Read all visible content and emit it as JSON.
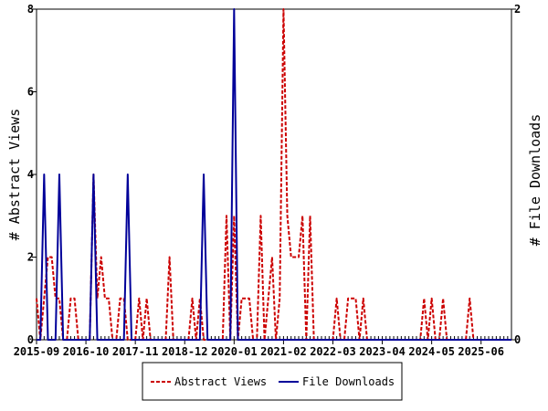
{
  "chart_data": {
    "type": "line",
    "title": "",
    "ylabel_left": "# Abstract Views",
    "ylabel_right": "# File Downloads",
    "x_tick_labels": [
      "2015-09",
      "2016-10",
      "2017-11",
      "2018-12",
      "2020-01",
      "2021-02",
      "2022-03",
      "2023-04",
      "2024-05",
      "2025-06"
    ],
    "x_range_months": [
      0,
      125
    ],
    "y_left_range": [
      0,
      8
    ],
    "y_left_ticks": [
      0,
      2,
      4,
      6,
      8
    ],
    "y_right_range": [
      0,
      2
    ],
    "y_right_ticks": [
      0,
      2
    ],
    "grid": false,
    "legend_placement": "bottom-center",
    "series": [
      {
        "name": "Abstract Views",
        "axis": "left",
        "color": "#cc0000",
        "style": "dashed",
        "points": [
          [
            0,
            1
          ],
          [
            1,
            0
          ],
          [
            2,
            1
          ],
          [
            3,
            2
          ],
          [
            4,
            2
          ],
          [
            5,
            1
          ],
          [
            6,
            1
          ],
          [
            7,
            0
          ],
          [
            8,
            0
          ],
          [
            9,
            1
          ],
          [
            10,
            1
          ],
          [
            11,
            0
          ],
          [
            12,
            0
          ],
          [
            13,
            0
          ],
          [
            14,
            0
          ],
          [
            15,
            4
          ],
          [
            16,
            1
          ],
          [
            17,
            2
          ],
          [
            18,
            1
          ],
          [
            19,
            1
          ],
          [
            20,
            0
          ],
          [
            21,
            0
          ],
          [
            22,
            1
          ],
          [
            23,
            1
          ],
          [
            24,
            0
          ],
          [
            25,
            0
          ],
          [
            26,
            0
          ],
          [
            27,
            1
          ],
          [
            28,
            0
          ],
          [
            29,
            1
          ],
          [
            30,
            0
          ],
          [
            31,
            0
          ],
          [
            32,
            0
          ],
          [
            33,
            0
          ],
          [
            34,
            0
          ],
          [
            35,
            2
          ],
          [
            36,
            0
          ],
          [
            37,
            0
          ],
          [
            38,
            0
          ],
          [
            39,
            0
          ],
          [
            40,
            0
          ],
          [
            41,
            1
          ],
          [
            42,
            0
          ],
          [
            43,
            1
          ],
          [
            44,
            0
          ],
          [
            45,
            0
          ],
          [
            46,
            0
          ],
          [
            47,
            0
          ],
          [
            48,
            0
          ],
          [
            49,
            0
          ],
          [
            50,
            3
          ],
          [
            51,
            0
          ],
          [
            52,
            3
          ],
          [
            53,
            0
          ],
          [
            54,
            1
          ],
          [
            55,
            1
          ],
          [
            56,
            1
          ],
          [
            57,
            0
          ],
          [
            58,
            0
          ],
          [
            59,
            3
          ],
          [
            60,
            0
          ],
          [
            61,
            1
          ],
          [
            62,
            2
          ],
          [
            63,
            0
          ],
          [
            64,
            1
          ],
          [
            65,
            8
          ],
          [
            66,
            3
          ],
          [
            67,
            2
          ],
          [
            68,
            2
          ],
          [
            69,
            2
          ],
          [
            70,
            3
          ],
          [
            71,
            0
          ],
          [
            72,
            3
          ],
          [
            73,
            0
          ],
          [
            74,
            0
          ],
          [
            75,
            0
          ],
          [
            76,
            0
          ],
          [
            77,
            0
          ],
          [
            78,
            0
          ],
          [
            79,
            1
          ],
          [
            80,
            0
          ],
          [
            81,
            0
          ],
          [
            82,
            1
          ],
          [
            83,
            1
          ],
          [
            84,
            1
          ],
          [
            85,
            0
          ],
          [
            86,
            1
          ],
          [
            87,
            0
          ],
          [
            88,
            0
          ],
          [
            89,
            0
          ],
          [
            90,
            0
          ],
          [
            91,
            0
          ],
          [
            92,
            0
          ],
          [
            93,
            0
          ],
          [
            94,
            0
          ],
          [
            95,
            0
          ],
          [
            96,
            0
          ],
          [
            97,
            0
          ],
          [
            98,
            0
          ],
          [
            99,
            0
          ],
          [
            100,
            0
          ],
          [
            101,
            0
          ],
          [
            102,
            1
          ],
          [
            103,
            0
          ],
          [
            104,
            1
          ],
          [
            105,
            0
          ],
          [
            106,
            0
          ],
          [
            107,
            1
          ],
          [
            108,
            0
          ],
          [
            109,
            0
          ],
          [
            110,
            0
          ],
          [
            111,
            0
          ],
          [
            112,
            0
          ],
          [
            113,
            0
          ],
          [
            114,
            1
          ],
          [
            115,
            0
          ],
          [
            116,
            0
          ],
          [
            117,
            0
          ],
          [
            118,
            0
          ],
          [
            119,
            0
          ],
          [
            120,
            0
          ],
          [
            121,
            0
          ],
          [
            122,
            0
          ],
          [
            123,
            0
          ],
          [
            124,
            0
          ],
          [
            125,
            0
          ]
        ]
      },
      {
        "name": "File Downloads",
        "axis": "right",
        "color": "#000099",
        "style": "solid",
        "points": [
          [
            0,
            0
          ],
          [
            1,
            0
          ],
          [
            2,
            1
          ],
          [
            3,
            0
          ],
          [
            4,
            0
          ],
          [
            5,
            0
          ],
          [
            6,
            1
          ],
          [
            7,
            0
          ],
          [
            8,
            0
          ],
          [
            9,
            0
          ],
          [
            10,
            0
          ],
          [
            11,
            0
          ],
          [
            12,
            0
          ],
          [
            13,
            0
          ],
          [
            14,
            0
          ],
          [
            15,
            1
          ],
          [
            16,
            0
          ],
          [
            17,
            0
          ],
          [
            18,
            0
          ],
          [
            19,
            0
          ],
          [
            20,
            0
          ],
          [
            21,
            0
          ],
          [
            22,
            0
          ],
          [
            23,
            0
          ],
          [
            24,
            1
          ],
          [
            25,
            0
          ],
          [
            26,
            0
          ],
          [
            27,
            0
          ],
          [
            28,
            0
          ],
          [
            29,
            0
          ],
          [
            30,
            0
          ],
          [
            31,
            0
          ],
          [
            32,
            0
          ],
          [
            33,
            0
          ],
          [
            34,
            0
          ],
          [
            35,
            0
          ],
          [
            36,
            0
          ],
          [
            37,
            0
          ],
          [
            38,
            0
          ],
          [
            39,
            0
          ],
          [
            40,
            0
          ],
          [
            41,
            0
          ],
          [
            42,
            0
          ],
          [
            43,
            0
          ],
          [
            44,
            1
          ],
          [
            45,
            0
          ],
          [
            46,
            0
          ],
          [
            47,
            0
          ],
          [
            48,
            0
          ],
          [
            49,
            0
          ],
          [
            50,
            0
          ],
          [
            51,
            0
          ],
          [
            52,
            2
          ],
          [
            53,
            0
          ],
          [
            54,
            0
          ],
          [
            55,
            0
          ],
          [
            56,
            0
          ],
          [
            57,
            0
          ],
          [
            58,
            0
          ],
          [
            59,
            0
          ],
          [
            60,
            0
          ],
          [
            61,
            0
          ],
          [
            62,
            0
          ],
          [
            63,
            0
          ],
          [
            64,
            0
          ],
          [
            65,
            0
          ],
          [
            66,
            0
          ],
          [
            67,
            0
          ],
          [
            68,
            0
          ],
          [
            69,
            0
          ],
          [
            70,
            0
          ],
          [
            71,
            0
          ],
          [
            72,
            0
          ],
          [
            73,
            0
          ],
          [
            74,
            0
          ],
          [
            75,
            0
          ],
          [
            76,
            0
          ],
          [
            77,
            0
          ],
          [
            78,
            0
          ],
          [
            79,
            0
          ],
          [
            80,
            0
          ],
          [
            81,
            0
          ],
          [
            82,
            0
          ],
          [
            83,
            0
          ],
          [
            84,
            0
          ],
          [
            85,
            0
          ],
          [
            86,
            0
          ],
          [
            87,
            0
          ],
          [
            88,
            0
          ],
          [
            89,
            0
          ],
          [
            90,
            0
          ],
          [
            91,
            0
          ],
          [
            92,
            0
          ],
          [
            93,
            0
          ],
          [
            94,
            0
          ],
          [
            95,
            0
          ],
          [
            96,
            0
          ],
          [
            97,
            0
          ],
          [
            98,
            0
          ],
          [
            99,
            0
          ],
          [
            100,
            0
          ],
          [
            101,
            0
          ],
          [
            102,
            0
          ],
          [
            103,
            0
          ],
          [
            104,
            0
          ],
          [
            105,
            0
          ],
          [
            106,
            0
          ],
          [
            107,
            0
          ],
          [
            108,
            0
          ],
          [
            109,
            0
          ],
          [
            110,
            0
          ],
          [
            111,
            0
          ],
          [
            112,
            0
          ],
          [
            113,
            0
          ],
          [
            114,
            0
          ],
          [
            115,
            0
          ],
          [
            116,
            0
          ],
          [
            117,
            0
          ],
          [
            118,
            0
          ],
          [
            119,
            0
          ],
          [
            120,
            0
          ],
          [
            121,
            0
          ],
          [
            122,
            0
          ],
          [
            123,
            0
          ],
          [
            124,
            0
          ],
          [
            125,
            0
          ]
        ]
      }
    ]
  }
}
